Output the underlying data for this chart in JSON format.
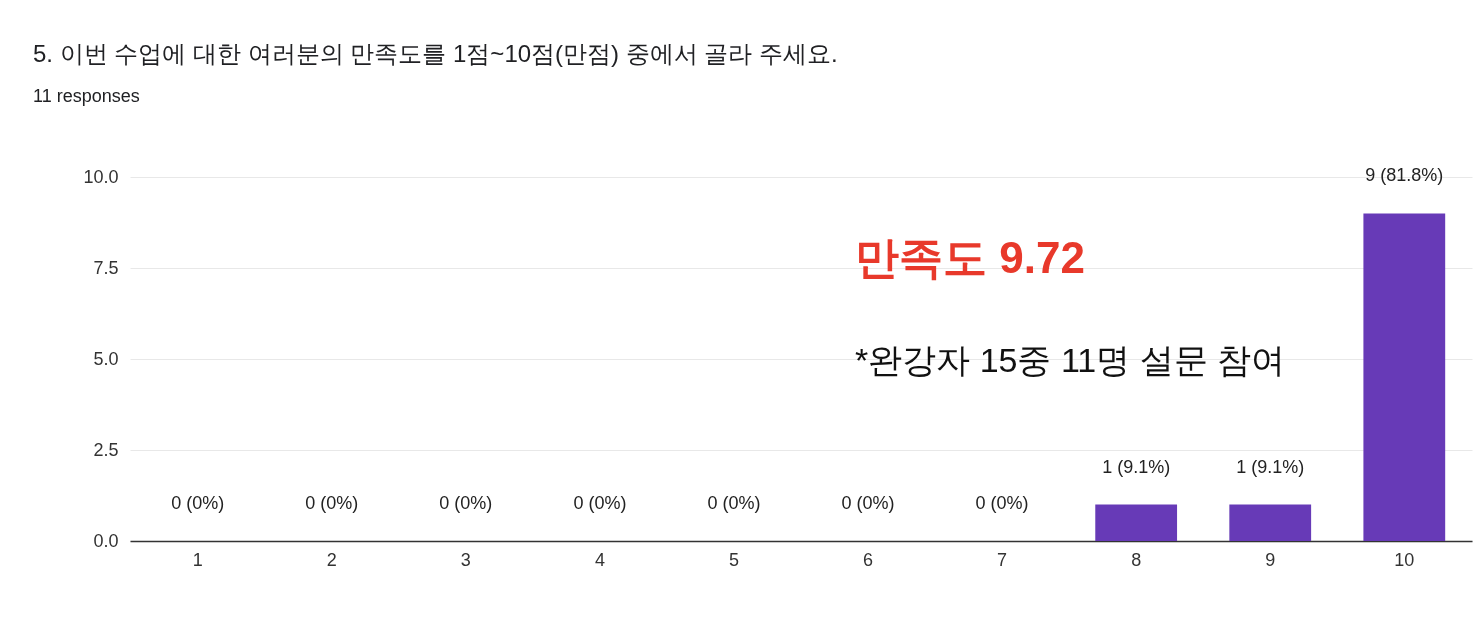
{
  "chart_data": {
    "type": "bar",
    "title": "5. 이번 수업에 대한 여러분의 만족도를 1점~10점(만점) 중에서 골라 주세요.",
    "subtitle": "11 responses",
    "categories": [
      "1",
      "2",
      "3",
      "4",
      "5",
      "6",
      "7",
      "8",
      "9",
      "10"
    ],
    "values": [
      0,
      0,
      0,
      0,
      0,
      0,
      0,
      1,
      1,
      9
    ],
    "value_labels": [
      "0 (0%)",
      "0 (0%)",
      "0 (0%)",
      "0 (0%)",
      "0 (0%)",
      "0 (0%)",
      "0 (0%)",
      "1 (9.1%)",
      "1 (9.1%)",
      "9 (81.8%)"
    ],
    "color": "#673ab7",
    "ylim": [
      0,
      10
    ],
    "yticks": [
      {
        "value": 0,
        "label": "0.0"
      },
      {
        "value": 2.5,
        "label": "2.5"
      },
      {
        "value": 5,
        "label": "5.0"
      },
      {
        "value": 7.5,
        "label": "7.5"
      },
      {
        "value": 10,
        "label": "10.0"
      }
    ],
    "grid": "y",
    "annotations": [
      "만족도 9.72",
      "*완강자 15중 11명 설문 참여"
    ]
  }
}
